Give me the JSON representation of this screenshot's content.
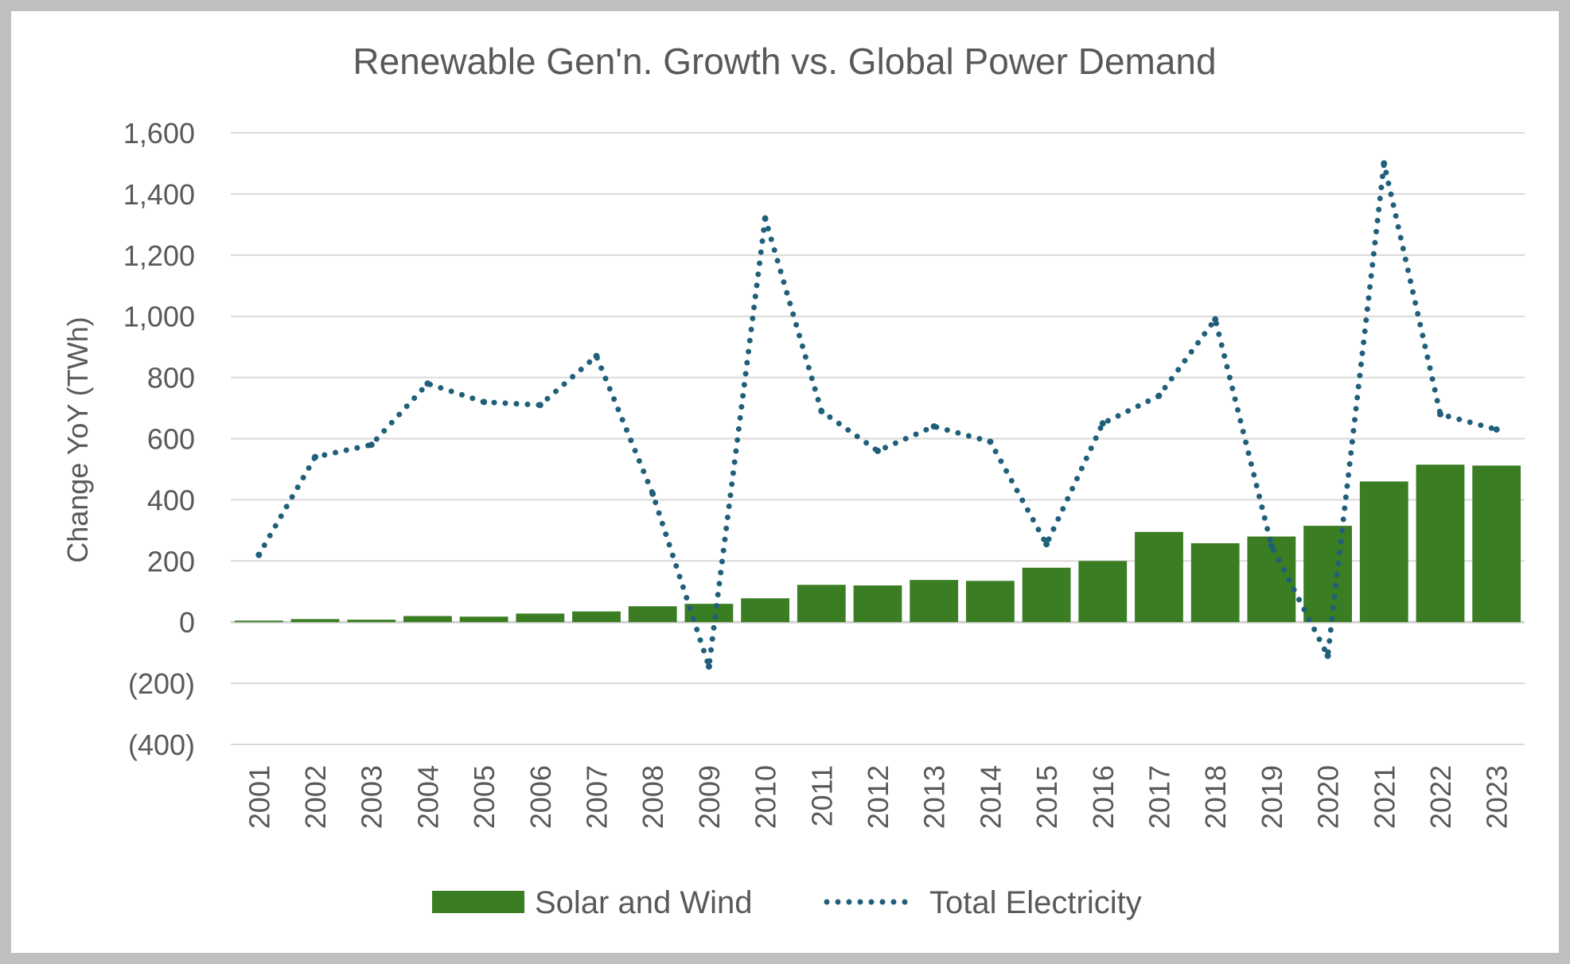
{
  "chart_data": {
    "type": "bar",
    "title": "Renewable Gen'n. Growth vs. Global Power Demand",
    "ylabel": "Change YoY (TWh)",
    "xlabel": "",
    "ylim": [
      -400,
      1600
    ],
    "y_ticks": [
      1600,
      1400,
      1200,
      1000,
      800,
      600,
      400,
      200,
      0,
      -200,
      -400
    ],
    "y_tick_labels": [
      "1,600",
      "1,400",
      "1,200",
      "1,000",
      "800",
      "600",
      "400",
      "200",
      "0",
      "(200)",
      "(400)"
    ],
    "grid": true,
    "legend_position": "bottom",
    "categories": [
      "2001",
      "2002",
      "2003",
      "2004",
      "2005",
      "2006",
      "2007",
      "2008",
      "2009",
      "2010",
      "2011",
      "2012",
      "2013",
      "2014",
      "2015",
      "2016",
      "2017",
      "2018",
      "2019",
      "2020",
      "2021",
      "2022",
      "2023"
    ],
    "series": [
      {
        "name": "Solar and Wind",
        "type": "bar",
        "color": "#3a7d22",
        "values": [
          5,
          10,
          8,
          20,
          18,
          28,
          35,
          52,
          60,
          78,
          122,
          120,
          138,
          135,
          178,
          200,
          295,
          258,
          280,
          315,
          460,
          515,
          512
        ]
      },
      {
        "name": "Total Electricity",
        "type": "line",
        "style": "dotted",
        "color": "#1f5f7a",
        "values": [
          220,
          540,
          580,
          780,
          720,
          710,
          870,
          420,
          -145,
          1320,
          690,
          560,
          640,
          590,
          255,
          650,
          740,
          990,
          250,
          -110,
          1500,
          680,
          630
        ]
      }
    ]
  }
}
